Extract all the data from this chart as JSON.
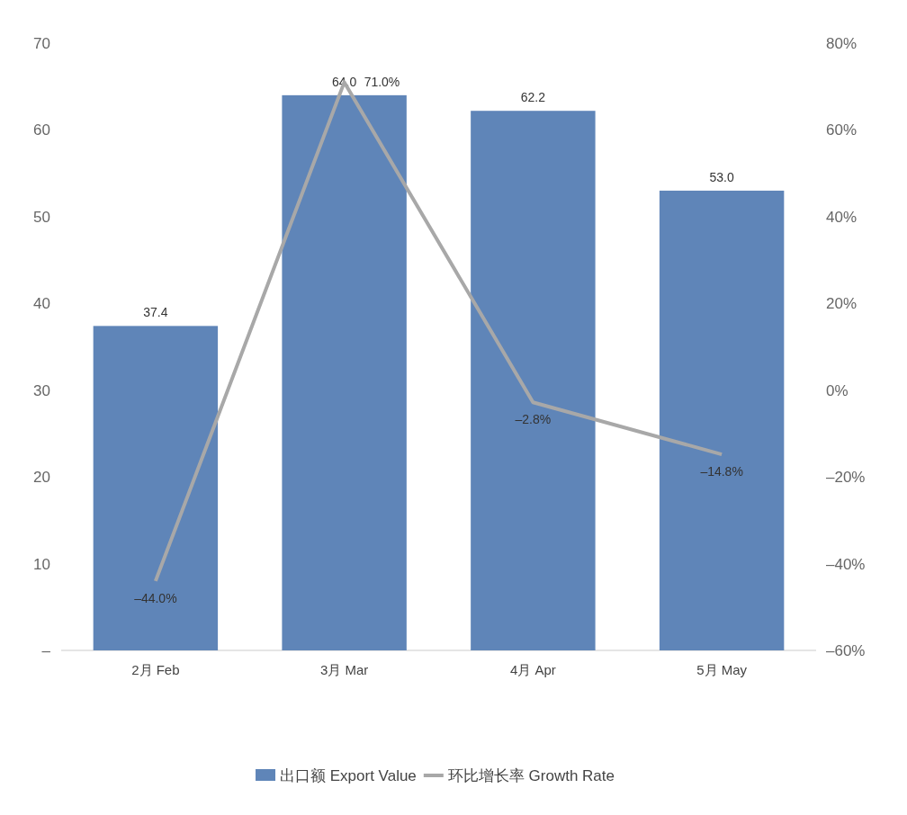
{
  "chart_data": {
    "type": "bar",
    "categories": [
      "2月 Feb",
      "3月 Mar",
      "4月 Apr",
      "5月 May"
    ],
    "series": [
      {
        "name": "出口额 Export Value",
        "color": "#5f85b8",
        "values": [
          37.4,
          64.0,
          62.2,
          53.0
        ],
        "value_labels": [
          "37.4",
          "64.0",
          "62.2",
          "53.0"
        ]
      },
      {
        "name": "环比增长率 Growth Rate",
        "type": "line",
        "axis": "y2",
        "color": "#a8a8a8",
        "values": [
          -44.0,
          71.0,
          -2.8,
          -14.8
        ],
        "value_labels": [
          "–44.0%",
          "71.0%",
          "–2.8%",
          "–14.8%"
        ]
      }
    ],
    "ylim": [
      0,
      70
    ],
    "yticks": [
      {
        "value": 0,
        "label": "–"
      },
      10,
      20,
      30,
      40,
      50,
      60,
      70
    ],
    "y2lim": [
      -60,
      80
    ],
    "y2ticks": [
      {
        "value": -60,
        "label": "–60%"
      },
      {
        "value": -40,
        "label": "–40%"
      },
      {
        "value": -20,
        "label": "–20%"
      },
      {
        "value": 0,
        "label": "0%"
      },
      {
        "value": 20,
        "label": "20%"
      },
      {
        "value": 40,
        "label": "40%"
      },
      {
        "value": 60,
        "label": "60%"
      },
      {
        "value": 80,
        "label": "80%"
      }
    ],
    "legend": "bottom",
    "marker": "none",
    "line_style": "solid"
  }
}
